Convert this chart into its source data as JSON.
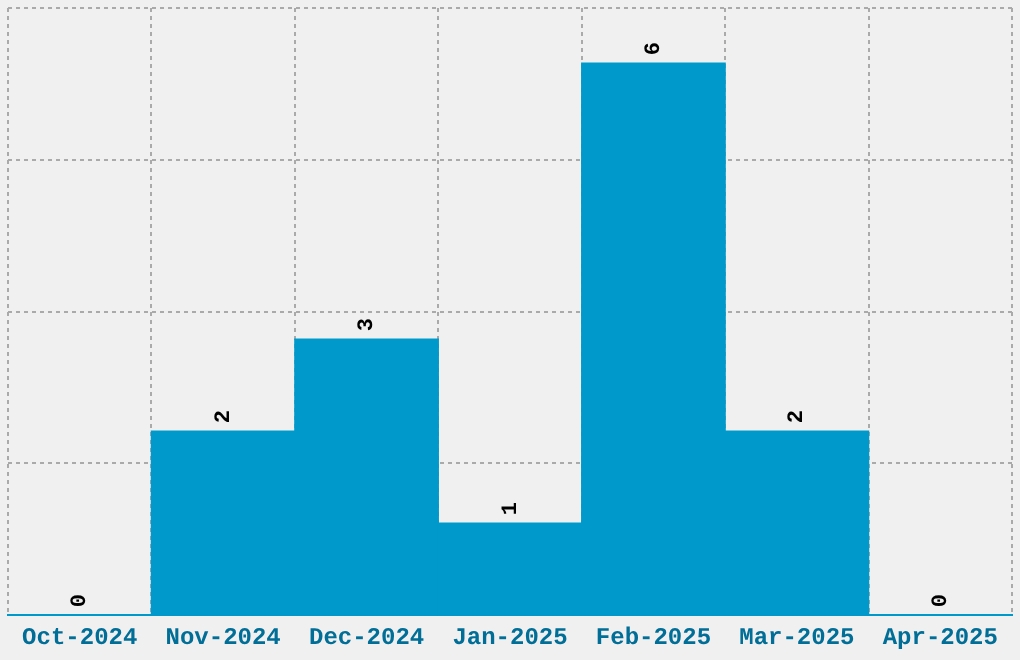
{
  "chart_data": {
    "type": "bar",
    "categories": [
      "Oct-2024",
      "Nov-2024",
      "Dec-2024",
      "Jan-2025",
      "Feb-2025",
      "Mar-2025",
      "Apr-2025"
    ],
    "values": [
      0,
      2,
      3,
      1,
      6,
      2,
      0
    ],
    "color": "#0099cc",
    "ylim": [
      0,
      6.6
    ],
    "yticks": [
      {
        "value": 0,
        "label": null
      },
      {
        "value": 1.65,
        "label": null
      },
      {
        "value": 3.3,
        "label": null
      },
      {
        "value": 4.95,
        "label": null
      },
      {
        "value": 6.6,
        "label": null
      }
    ],
    "grid": true,
    "data_labels": true,
    "tick_labels": "x",
    "legend": false
  }
}
